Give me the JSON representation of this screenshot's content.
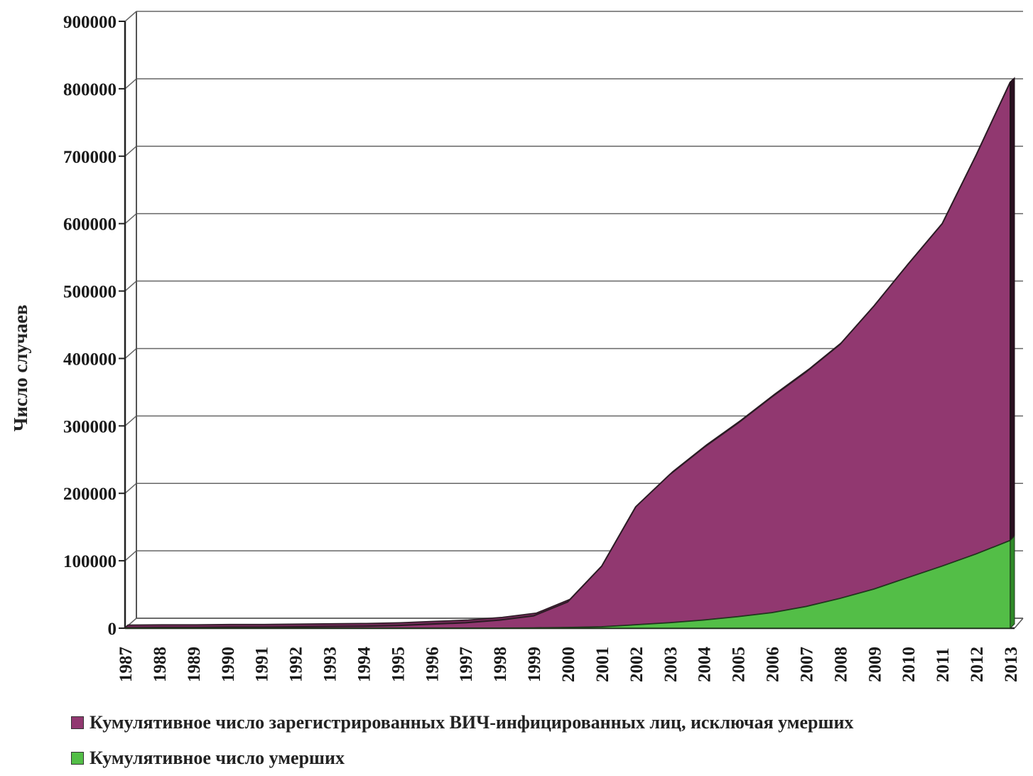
{
  "chart_data": {
    "type": "area",
    "stacked": true,
    "three_d": true,
    "ylabel": "Число случаев",
    "xlabel": "",
    "ylim": [
      0,
      900000
    ],
    "yticks": [
      0,
      100000,
      200000,
      300000,
      400000,
      500000,
      600000,
      700000,
      800000,
      900000
    ],
    "grid": true,
    "legend_position": "bottom",
    "categories": [
      "1987",
      "1988",
      "1989",
      "1990",
      "1991",
      "1992",
      "1993",
      "1994",
      "1995",
      "1996",
      "1997",
      "1998",
      "1999",
      "2000",
      "2001",
      "2002",
      "2003",
      "2004",
      "2005",
      "2006",
      "2007",
      "2008",
      "2009",
      "2010",
      "2011",
      "2012",
      "2013"
    ],
    "series": [
      {
        "name": "Кумулятивное число умерших",
        "color": "#53be47",
        "values": [
          0,
          0,
          0,
          0,
          0,
          0,
          0,
          0,
          0,
          0,
          0,
          0,
          300,
          1000,
          2000,
          5000,
          8000,
          12000,
          17000,
          23000,
          32000,
          44000,
          58000,
          75000,
          92000,
          110000,
          130000
        ]
      },
      {
        "name": "Кумулятивное число зарегистрированных ВИЧ-инфицированных лиц, исключая умерших",
        "color": "#913870",
        "values": [
          500,
          1000,
          1000,
          1500,
          1500,
          2000,
          2500,
          3000,
          4000,
          6000,
          8000,
          12000,
          18000,
          38000,
          90000,
          175000,
          220000,
          256000,
          287000,
          320000,
          348000,
          377000,
          420000,
          465000,
          508000,
          592000,
          680000
        ]
      }
    ]
  }
}
